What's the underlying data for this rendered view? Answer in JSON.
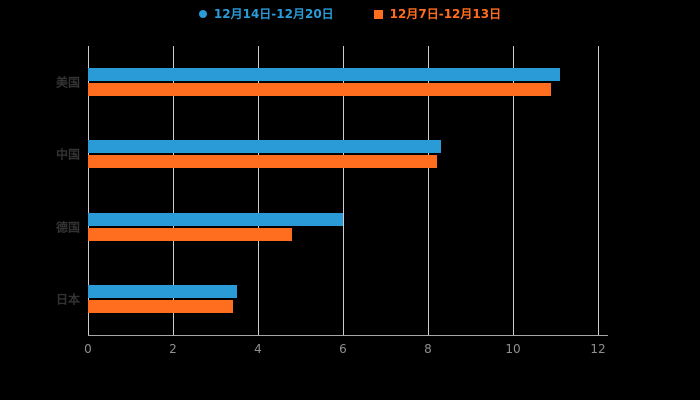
{
  "chart_data": {
    "type": "bar",
    "orientation": "horizontal",
    "title": "",
    "categories": [
      "美国",
      "中国",
      "德国",
      "日本"
    ],
    "series": [
      {
        "name": "12月14日-12月20日",
        "marker": "circle",
        "color": "#2B9BD7",
        "values": [
          11.1,
          8.3,
          6.0,
          3.5
        ]
      },
      {
        "name": "12月7日-12月13日",
        "marker": "square",
        "color": "#FF6D1F",
        "values": [
          10.9,
          8.2,
          4.8,
          3.4
        ]
      }
    ],
    "xlim": [
      0,
      12
    ],
    "xticks": [
      0,
      2,
      4,
      6,
      8,
      10,
      12
    ],
    "grid": true,
    "legend_position": "top"
  },
  "colors": {
    "background": "#000000",
    "grid": "#CDCDCD",
    "axis_line": "#A6A6A6",
    "tick_label": "#8F8F8F",
    "category_label": "#333333"
  }
}
